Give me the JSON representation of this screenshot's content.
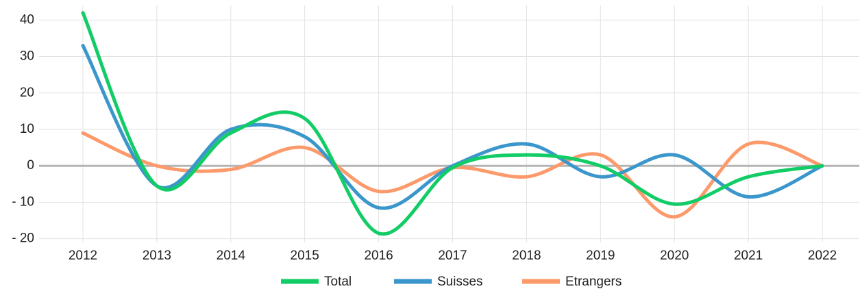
{
  "chart_data": {
    "type": "line",
    "categories": [
      "2012",
      "2013",
      "2014",
      "2015",
      "2016",
      "2017",
      "2018",
      "2019",
      "2020",
      "2021",
      "2022"
    ],
    "series": [
      {
        "name": "Total",
        "color": "#12cc66",
        "values": [
          42,
          -5.5,
          9,
          13,
          -18.5,
          -0.5,
          3,
          0,
          -10.5,
          -3,
          0
        ]
      },
      {
        "name": "Suisses",
        "color": "#3b97cb",
        "values": [
          33,
          -5.5,
          10,
          8,
          -11.5,
          0,
          6,
          -3,
          3,
          -8.5,
          0
        ]
      },
      {
        "name": "Etrangers",
        "color": "#fd9a6b",
        "values": [
          9,
          0,
          -1,
          5,
          -7,
          -0.5,
          -3,
          3,
          -14,
          6,
          0
        ]
      }
    ],
    "ylim": [
      -21,
      44
    ],
    "yticks": [
      {
        "value": -20,
        "label": "- 20"
      },
      {
        "value": -10,
        "label": "- 10"
      },
      0,
      10,
      20,
      30,
      40
    ],
    "grid": true
  }
}
